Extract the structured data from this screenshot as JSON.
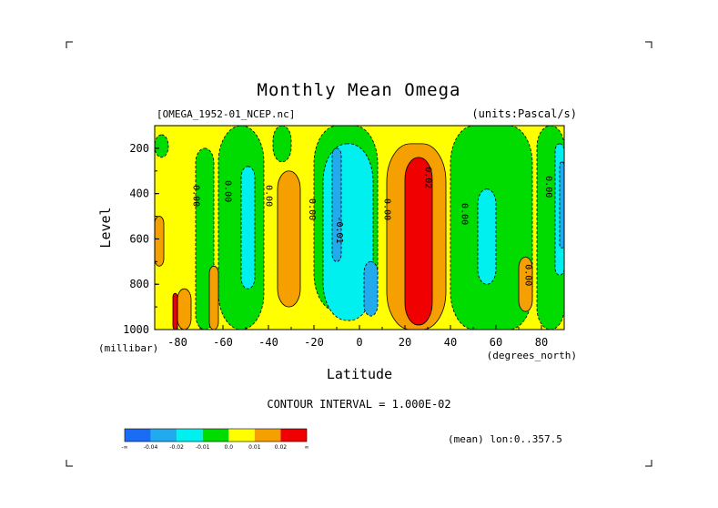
{
  "chart_data": {
    "type": "heatmap",
    "title": "Monthly Mean Omega",
    "file_label": "[OMEGA_1952-01_NCEP.nc]",
    "units_label": "(units:Pascal/s)",
    "xlabel": "Latitude",
    "x_unit": "(degrees_north)",
    "ylabel": "Level",
    "y_unit": "(millibar)",
    "xlim": [
      -90,
      90
    ],
    "ylim": [
      1000,
      100
    ],
    "x_ticks": [
      -80,
      -60,
      -40,
      -20,
      0,
      20,
      40,
      60,
      80
    ],
    "x_tick_labels": [
      "-80",
      "-60",
      "-40",
      "-20",
      "0",
      "20",
      "40",
      "60",
      "80"
    ],
    "y_ticks": [
      200,
      400,
      600,
      800,
      1000
    ],
    "y_tick_labels": [
      "200",
      "400",
      "600",
      "800",
      "1000"
    ],
    "contour_interval_text": "CONTOUR INTERVAL = 1.000E-02",
    "contour_labels": [
      {
        "lat": -73,
        "level": 410,
        "text": "0.00"
      },
      {
        "lat": -59,
        "level": 390,
        "text": "0.00"
      },
      {
        "lat": -41,
        "level": 410,
        "text": "0.00"
      },
      {
        "lat": -22,
        "level": 470,
        "text": "0.00"
      },
      {
        "lat": -10,
        "level": 560,
        "text": "-0.01"
      },
      {
        "lat": 11,
        "level": 470,
        "text": "0.00"
      },
      {
        "lat": 29,
        "level": 330,
        "text": "0.02"
      },
      {
        "lat": 45,
        "level": 490,
        "text": "0.00"
      },
      {
        "lat": 73,
        "level": 760,
        "text": "0.00"
      },
      {
        "lat": 82,
        "level": 370,
        "text": "0.00"
      }
    ],
    "colorbar": {
      "colors": [
        "#1a6cf5",
        "#22aaee",
        "#00f0f0",
        "#00dc00",
        "#ffff00",
        "#f5a000",
        "#f00000"
      ],
      "labels": [
        "-∞",
        "-0.04",
        "-0.02",
        "-0.01",
        "0.0",
        "0.01",
        "0.02",
        "∞"
      ]
    },
    "regions": [
      {
        "value": 0.0,
        "fill": "#ffff00",
        "lat": [
          -90,
          90
        ],
        "level": [
          100,
          1000
        ]
      },
      {
        "value": -0.01,
        "fill": "#00dc00",
        "lat": [
          -90,
          -84
        ],
        "level": [
          140,
          240
        ]
      },
      {
        "value": -0.01,
        "fill": "#00dc00",
        "lat": [
          -72,
          -64
        ],
        "level": [
          200,
          1000
        ]
      },
      {
        "value": -0.01,
        "fill": "#00dc00",
        "lat": [
          -62,
          -42
        ],
        "level": [
          100,
          1000
        ]
      },
      {
        "value": -0.01,
        "fill": "#00dc00",
        "lat": [
          -38,
          -30
        ],
        "level": [
          100,
          260
        ]
      },
      {
        "value": -0.01,
        "fill": "#00dc00",
        "lat": [
          -20,
          8
        ],
        "level": [
          100,
          920
        ]
      },
      {
        "value": -0.01,
        "fill": "#00dc00",
        "lat": [
          40,
          76
        ],
        "level": [
          100,
          1000
        ]
      },
      {
        "value": -0.01,
        "fill": "#00dc00",
        "lat": [
          78,
          90
        ],
        "level": [
          100,
          1000
        ]
      },
      {
        "value": -0.02,
        "fill": "#00f0f0",
        "lat": [
          -52,
          -46
        ],
        "level": [
          280,
          820
        ]
      },
      {
        "value": -0.02,
        "fill": "#00f0f0",
        "lat": [
          -16,
          6
        ],
        "level": [
          180,
          960
        ]
      },
      {
        "value": -0.02,
        "fill": "#00f0f0",
        "lat": [
          52,
          60
        ],
        "level": [
          380,
          800
        ]
      },
      {
        "value": -0.02,
        "fill": "#00f0f0",
        "lat": [
          86,
          90
        ],
        "level": [
          180,
          760
        ]
      },
      {
        "value": -0.04,
        "fill": "#22aaee",
        "lat": [
          -12,
          -8
        ],
        "level": [
          200,
          700
        ]
      },
      {
        "value": -0.04,
        "fill": "#22aaee",
        "lat": [
          2,
          8
        ],
        "level": [
          700,
          940
        ]
      },
      {
        "value": -0.04,
        "fill": "#22aaee",
        "lat": [
          88,
          90
        ],
        "level": [
          260,
          640
        ]
      },
      {
        "value": 0.01,
        "fill": "#f5a000",
        "lat": [
          -90,
          -86
        ],
        "level": [
          500,
          720
        ]
      },
      {
        "value": 0.01,
        "fill": "#f5a000",
        "lat": [
          -80,
          -74
        ],
        "level": [
          820,
          1000
        ]
      },
      {
        "value": 0.01,
        "fill": "#f5a000",
        "lat": [
          -66,
          -62
        ],
        "level": [
          720,
          1000
        ]
      },
      {
        "value": 0.01,
        "fill": "#f5a000",
        "lat": [
          -36,
          -26
        ],
        "level": [
          300,
          900
        ]
      },
      {
        "value": 0.01,
        "fill": "#f5a000",
        "lat": [
          12,
          38
        ],
        "level": [
          180,
          1000
        ]
      },
      {
        "value": 0.01,
        "fill": "#f5a000",
        "lat": [
          70,
          76
        ],
        "level": [
          680,
          920
        ]
      },
      {
        "value": 0.02,
        "fill": "#f00000",
        "lat": [
          20,
          32
        ],
        "level": [
          240,
          980
        ]
      },
      {
        "value": 0.02,
        "fill": "#f00000",
        "lat": [
          -82,
          -80
        ],
        "level": [
          840,
          1000
        ]
      }
    ]
  },
  "mean_lon_text": "(mean) lon:0..357.5"
}
